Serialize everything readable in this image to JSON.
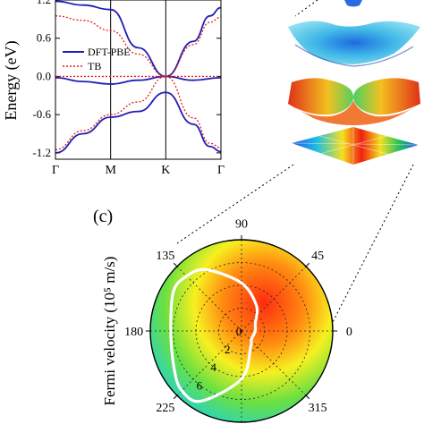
{
  "chart_data": [
    {
      "type": "line",
      "ylabel": "Energy (eV)",
      "ylim": [
        -1.3,
        1.2
      ],
      "y_ticks": [
        "-1.2",
        "-0.6",
        "0.0",
        "0.6",
        "1.2"
      ],
      "y_tick_values": [
        -1.2,
        -0.6,
        0.0,
        0.6,
        1.2
      ],
      "x_ticks": [
        "Γ",
        "M",
        "K",
        "Γ"
      ],
      "x_tick_values": [
        0,
        1,
        2,
        3
      ],
      "legend": [
        "DFT-PBE",
        "TB"
      ],
      "legend_placement": "left-middle",
      "colors": {
        "dft": "#1f1fb5",
        "tb": "#e0201c"
      },
      "series": [
        {
          "name": "DFT-PBE",
          "style": "solid",
          "bands": [
            {
              "x": [
                0,
                0.5,
                1,
                1.5,
                2
              ],
              "y": [
                1.18,
                1.12,
                1.05,
                0.45,
                0.0
              ]
            },
            {
              "x": [
                2,
                2.5,
                2.8,
                3
              ],
              "y": [
                0.0,
                0.55,
                0.95,
                1.08
              ]
            },
            {
              "x": [
                0,
                0.5,
                1,
                1.5,
                2
              ],
              "y": [
                -0.02,
                -0.08,
                -0.12,
                -0.06,
                0.0
              ]
            },
            {
              "x": [
                2,
                2.5,
                3
              ],
              "y": [
                0.0,
                -0.06,
                -0.02
              ]
            },
            {
              "x": [
                0,
                0.5,
                1,
                1.5,
                2
              ],
              "y": [
                -1.2,
                -0.9,
                -0.64,
                -0.55,
                -0.25
              ]
            },
            {
              "x": [
                2,
                2.5,
                2.8,
                3
              ],
              "y": [
                -0.25,
                -0.75,
                -1.1,
                -1.18
              ]
            }
          ]
        },
        {
          "name": "TB",
          "style": "dotted",
          "bands": [
            {
              "x": [
                0,
                0.5,
                1,
                1.5,
                2
              ],
              "y": [
                0.95,
                0.88,
                0.72,
                0.35,
                0.0
              ]
            },
            {
              "x": [
                2,
                2.5,
                2.8,
                3
              ],
              "y": [
                0.0,
                0.5,
                0.85,
                0.93
              ]
            },
            {
              "x": [
                0,
                1,
                2,
                3
              ],
              "y": [
                0.0,
                0.0,
                0.0,
                0.0
              ]
            },
            {
              "x": [
                0,
                0.5,
                1,
                1.5,
                2
              ],
              "y": [
                -1.15,
                -0.85,
                -0.6,
                -0.4,
                0.0
              ]
            },
            {
              "x": [
                2,
                2.5,
                2.8,
                3
              ],
              "y": [
                0.0,
                -0.65,
                -1.05,
                -1.12
              ]
            }
          ]
        }
      ]
    },
    {
      "type": "polar",
      "panel_label": "(c)",
      "ylabel": "Fermi velocity (10⁵ m/s)",
      "angle_ticks": [
        "0",
        "45",
        "90",
        "135",
        "180",
        "225",
        "315"
      ],
      "angle_tick_values": [
        0,
        45,
        90,
        135,
        180,
        225,
        315
      ],
      "radial_ticks": [
        "0",
        "2",
        "4",
        "6"
      ],
      "radial_tick_values": [
        0,
        2,
        4,
        6
      ],
      "rlim": [
        0,
        8
      ],
      "series": [
        {
          "theta": [
            0,
            30,
            60,
            90,
            120,
            135,
            150,
            180,
            210,
            225,
            240,
            270,
            300,
            315,
            330,
            360
          ],
          "r": [
            1.2,
            1.4,
            2.6,
            4.2,
            6.2,
            6.8,
            6.9,
            6.2,
            6.8,
            7.4,
            7.1,
            4.2,
            1.6,
            1.2,
            1.1,
            1.2
          ],
          "color": "#ffffff"
        }
      ]
    }
  ]
}
